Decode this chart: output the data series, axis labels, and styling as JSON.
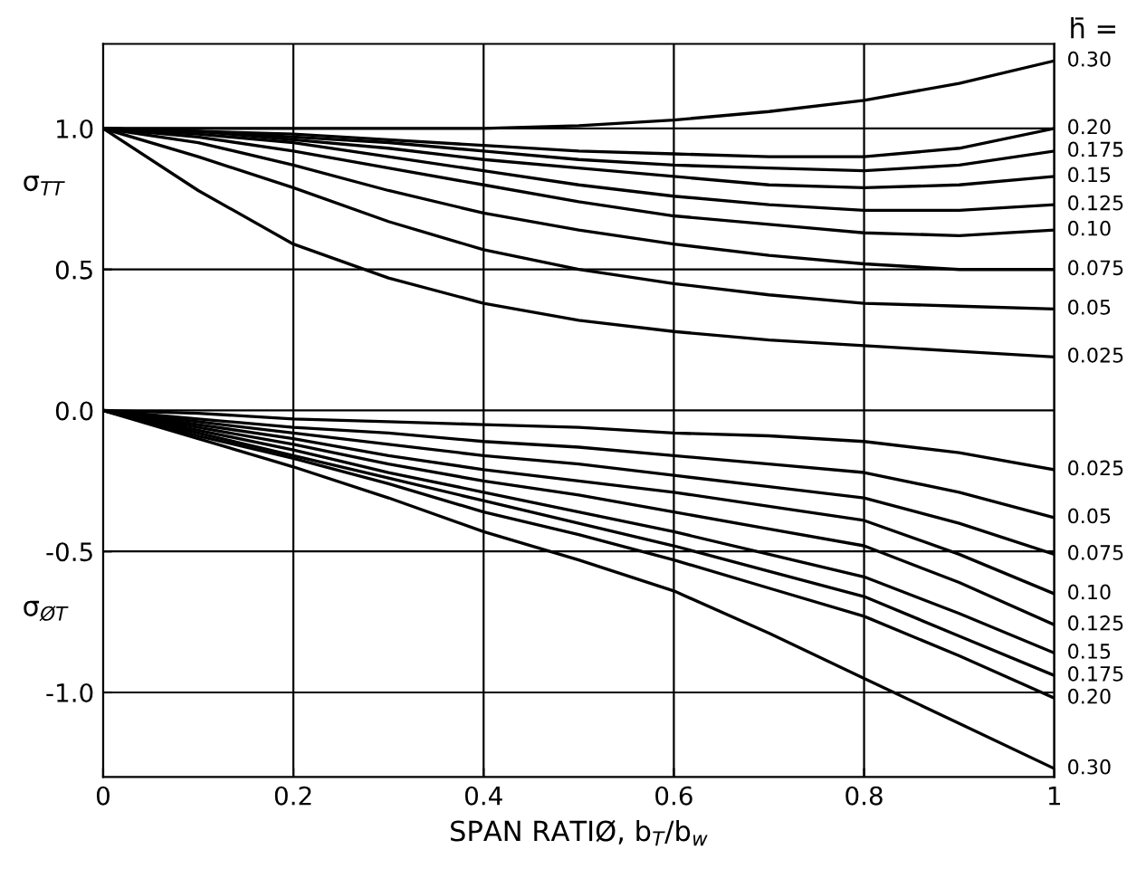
{
  "chart_data": {
    "type": "line",
    "xlabel": "SPAN RATIØ, b$_{T}$/b$_{w}$",
    "annotations": [
      "h̄ =",
      "σ$_{TT}$",
      "σ$_{ØT}$"
    ],
    "x": [
      0,
      0.1,
      0.2,
      0.3,
      0.4,
      0.5,
      0.6,
      0.7,
      0.8,
      0.9,
      1.0
    ],
    "xlim": [
      0,
      1
    ],
    "xticks": [
      0,
      0.2,
      0.4,
      0.6,
      0.8,
      1
    ],
    "ylim": [
      -1.3,
      1.3
    ],
    "yticks": [
      {
        "value": 1,
        "label": "1.0"
      },
      {
        "value": 0.5,
        "label": "0.5"
      },
      {
        "value": 0,
        "label": "0.0"
      },
      {
        "value": -0.5,
        "label": "-0.5"
      },
      {
        "value": -1,
        "label": "-1.0"
      }
    ],
    "grid": true,
    "legend": false,
    "marker": "none",
    "line_style": "solid",
    "series": [
      {
        "name": "0.30",
        "color": "#000000",
        "values": [
          1.0,
          1.0,
          1.0,
          1.0,
          1.0,
          1.01,
          1.03,
          1.06,
          1.1,
          1.16,
          1.24
        ]
      },
      {
        "name": "0.20",
        "color": "#000000",
        "values": [
          1.0,
          0.99,
          0.98,
          0.96,
          0.94,
          0.92,
          0.91,
          0.9,
          0.9,
          0.93,
          1.0
        ]
      },
      {
        "name": "0.175",
        "color": "#000000",
        "values": [
          1.0,
          0.99,
          0.97,
          0.95,
          0.92,
          0.89,
          0.87,
          0.86,
          0.85,
          0.87,
          0.92
        ]
      },
      {
        "name": "0.15",
        "color": "#000000",
        "values": [
          1.0,
          0.99,
          0.96,
          0.93,
          0.89,
          0.86,
          0.83,
          0.8,
          0.79,
          0.8,
          0.83
        ]
      },
      {
        "name": "0.125",
        "color": "#000000",
        "values": [
          1.0,
          0.98,
          0.95,
          0.9,
          0.85,
          0.8,
          0.76,
          0.73,
          0.71,
          0.71,
          0.73
        ]
      },
      {
        "name": "0.10",
        "color": "#000000",
        "values": [
          1.0,
          0.97,
          0.92,
          0.86,
          0.8,
          0.74,
          0.69,
          0.66,
          0.63,
          0.62,
          0.64
        ]
      },
      {
        "name": "0.075",
        "color": "#000000",
        "values": [
          1.0,
          0.95,
          0.87,
          0.78,
          0.7,
          0.64,
          0.59,
          0.55,
          0.52,
          0.5,
          0.5
        ]
      },
      {
        "name": "0.05",
        "color": "#000000",
        "values": [
          1.0,
          0.9,
          0.79,
          0.67,
          0.57,
          0.5,
          0.45,
          0.41,
          0.38,
          0.37,
          0.36
        ]
      },
      {
        "name": "0.025",
        "color": "#000000",
        "values": [
          1.0,
          0.78,
          0.59,
          0.47,
          0.38,
          0.32,
          0.28,
          0.25,
          0.23,
          0.21,
          0.19
        ]
      },
      {
        "name": "0.025",
        "color": "#000000",
        "values": [
          0,
          -0.01,
          -0.03,
          -0.04,
          -0.05,
          -0.06,
          -0.08,
          -0.09,
          -0.11,
          -0.15,
          -0.21
        ]
      },
      {
        "name": "0.05",
        "color": "#000000",
        "values": [
          0,
          -0.03,
          -0.06,
          -0.08,
          -0.11,
          -0.13,
          -0.16,
          -0.19,
          -0.22,
          -0.29,
          -0.38
        ]
      },
      {
        "name": "0.075",
        "color": "#000000",
        "values": [
          0,
          -0.04,
          -0.08,
          -0.12,
          -0.16,
          -0.19,
          -0.23,
          -0.27,
          -0.31,
          -0.4,
          -0.51
        ]
      },
      {
        "name": "0.10",
        "color": "#000000",
        "values": [
          0,
          -0.05,
          -0.1,
          -0.16,
          -0.21,
          -0.25,
          -0.29,
          -0.34,
          -0.39,
          -0.51,
          -0.65
        ]
      },
      {
        "name": "0.125",
        "color": "#000000",
        "values": [
          0,
          -0.06,
          -0.12,
          -0.19,
          -0.25,
          -0.3,
          -0.36,
          -0.42,
          -0.48,
          -0.61,
          -0.76
        ]
      },
      {
        "name": "0.15",
        "color": "#000000",
        "values": [
          0,
          -0.07,
          -0.14,
          -0.22,
          -0.29,
          -0.36,
          -0.43,
          -0.51,
          -0.59,
          -0.72,
          -0.86
        ]
      },
      {
        "name": "0.175",
        "color": "#000000",
        "values": [
          0,
          -0.08,
          -0.16,
          -0.24,
          -0.32,
          -0.4,
          -0.48,
          -0.57,
          -0.66,
          -0.8,
          -0.94
        ]
      },
      {
        "name": "0.20",
        "color": "#000000",
        "values": [
          0,
          -0.09,
          -0.17,
          -0.26,
          -0.36,
          -0.44,
          -0.53,
          -0.63,
          -0.73,
          -0.87,
          -1.02
        ]
      },
      {
        "name": "0.30",
        "color": "#000000",
        "values": [
          0,
          -0.1,
          -0.2,
          -0.31,
          -0.43,
          -0.53,
          -0.64,
          -0.79,
          -0.95,
          -1.11,
          -1.27
        ]
      }
    ]
  }
}
